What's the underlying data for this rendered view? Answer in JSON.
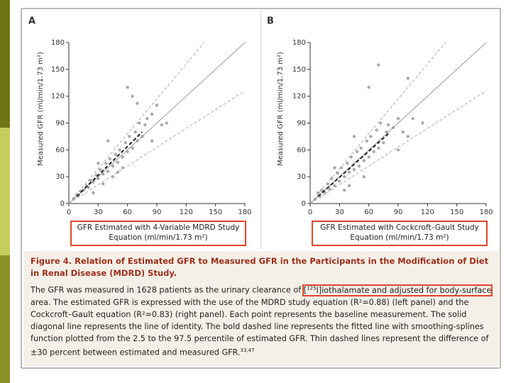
{
  "chart_data": [
    {
      "type": "scatter",
      "label": "A",
      "ylabel": "Measured GFR (ml/min/1.73 m²)",
      "xlabel": [
        "GFR Estimated with 4-Variable MDRD Study",
        "Equation (ml/min/1.73 m²)"
      ],
      "xlim": [
        0,
        180
      ],
      "ylim": [
        0,
        180
      ],
      "xticks": [
        0,
        30,
        60,
        90,
        120,
        150,
        180
      ],
      "yticks": [
        0,
        30,
        60,
        90,
        120,
        150,
        180
      ],
      "color": "#a9a9a9",
      "x": [
        5,
        8,
        10,
        12,
        15,
        18,
        20,
        22,
        25,
        28,
        30,
        32,
        35,
        38,
        40,
        42,
        45,
        48,
        50,
        52,
        55,
        58,
        60,
        62,
        65,
        68,
        70,
        72,
        75,
        78,
        80,
        85,
        90,
        95,
        100,
        60,
        65,
        70,
        40,
        45,
        30,
        50,
        55,
        85,
        25,
        35
      ],
      "values": [
        6,
        10,
        9,
        14,
        15,
        20,
        18,
        26,
        24,
        32,
        28,
        38,
        33,
        45,
        36,
        50,
        42,
        55,
        46,
        60,
        52,
        68,
        58,
        75,
        62,
        80,
        70,
        90,
        75,
        88,
        95,
        100,
        110,
        88,
        90,
        130,
        120,
        112,
        70,
        30,
        45,
        35,
        40,
        70,
        12,
        22
      ],
      "lines": [
        {
          "x": [
            0,
            180
          ],
          "values": [
            0,
            180
          ],
          "style": "solid"
        },
        {
          "x": [
            0,
            138.5
          ],
          "values": [
            0,
            180
          ],
          "style": "dashed"
        },
        {
          "x": [
            0,
            180
          ],
          "values": [
            0,
            126
          ],
          "style": "dashed"
        },
        {
          "x": [
            8,
            75
          ],
          "values": [
            8,
            80
          ],
          "style": "bold-dashed"
        }
      ]
    },
    {
      "type": "scatter",
      "label": "B",
      "ylabel": "Measured GFR (ml/min/1.73 m²)",
      "xlabel": [
        "GFR Estimated with Cockcroft–Gault Study",
        "Equation (ml/min/1.73 m²)"
      ],
      "xlim": [
        0,
        180
      ],
      "ylim": [
        0,
        180
      ],
      "xticks": [
        0,
        30,
        60,
        90,
        120,
        150,
        180
      ],
      "yticks": [
        0,
        30,
        60,
        90,
        120,
        150,
        180
      ],
      "color": "#a9a9a9",
      "x": [
        5,
        8,
        10,
        12,
        15,
        18,
        20,
        22,
        25,
        28,
        30,
        32,
        35,
        38,
        40,
        42,
        45,
        48,
        50,
        52,
        55,
        58,
        60,
        62,
        65,
        68,
        70,
        72,
        75,
        78,
        80,
        85,
        90,
        95,
        100,
        105,
        70,
        60,
        45,
        100,
        115,
        35,
        55,
        90,
        25,
        40
      ],
      "values": [
        5,
        12,
        8,
        15,
        12,
        22,
        16,
        28,
        20,
        34,
        25,
        40,
        30,
        45,
        35,
        52,
        38,
        58,
        42,
        62,
        48,
        70,
        52,
        75,
        58,
        82,
        62,
        90,
        68,
        80,
        88,
        85,
        95,
        80,
        75,
        95,
        155,
        130,
        75,
        140,
        90,
        15,
        30,
        60,
        40,
        20
      ],
      "lines": [
        {
          "x": [
            0,
            180
          ],
          "values": [
            0,
            180
          ],
          "style": "solid"
        },
        {
          "x": [
            0,
            138.5
          ],
          "values": [
            0,
            180
          ],
          "style": "dashed"
        },
        {
          "x": [
            0,
            180
          ],
          "values": [
            0,
            126
          ],
          "style": "dashed"
        },
        {
          "x": [
            8,
            80
          ],
          "values": [
            8,
            78
          ],
          "style": "bold-dashed"
        }
      ]
    }
  ],
  "caption": {
    "title": "Figure 4. Relation of Estimated GFR to Measured GFR in the Participants in the Modification of Diet in Renal Disease (MDRD) Study.",
    "body_start": "The GFR was measured in 1628 patients as the urinary clearance of ",
    "boxed_open": "[",
    "boxed_sup": "125",
    "boxed_rest": "I]iothalamate and adjusted for body-surface",
    "body_rest": " area. The estimated GFR is expressed with the use of the MDRD study equation (R²=0.88) (left panel) and the Cockcroft–Gault equation (R²=0.83) (right panel). Each point represents the baseline measurement. The solid diagonal line represents the line of identity. The bold dashed line represents the fitted line with smoothing-splines function plotted from the 2.5 to the 97.5 percentile of estimated GFR. Thin dashed lines represent the difference of ±30 percent between estimated and measured GFR.",
    "refs": "33,47"
  }
}
